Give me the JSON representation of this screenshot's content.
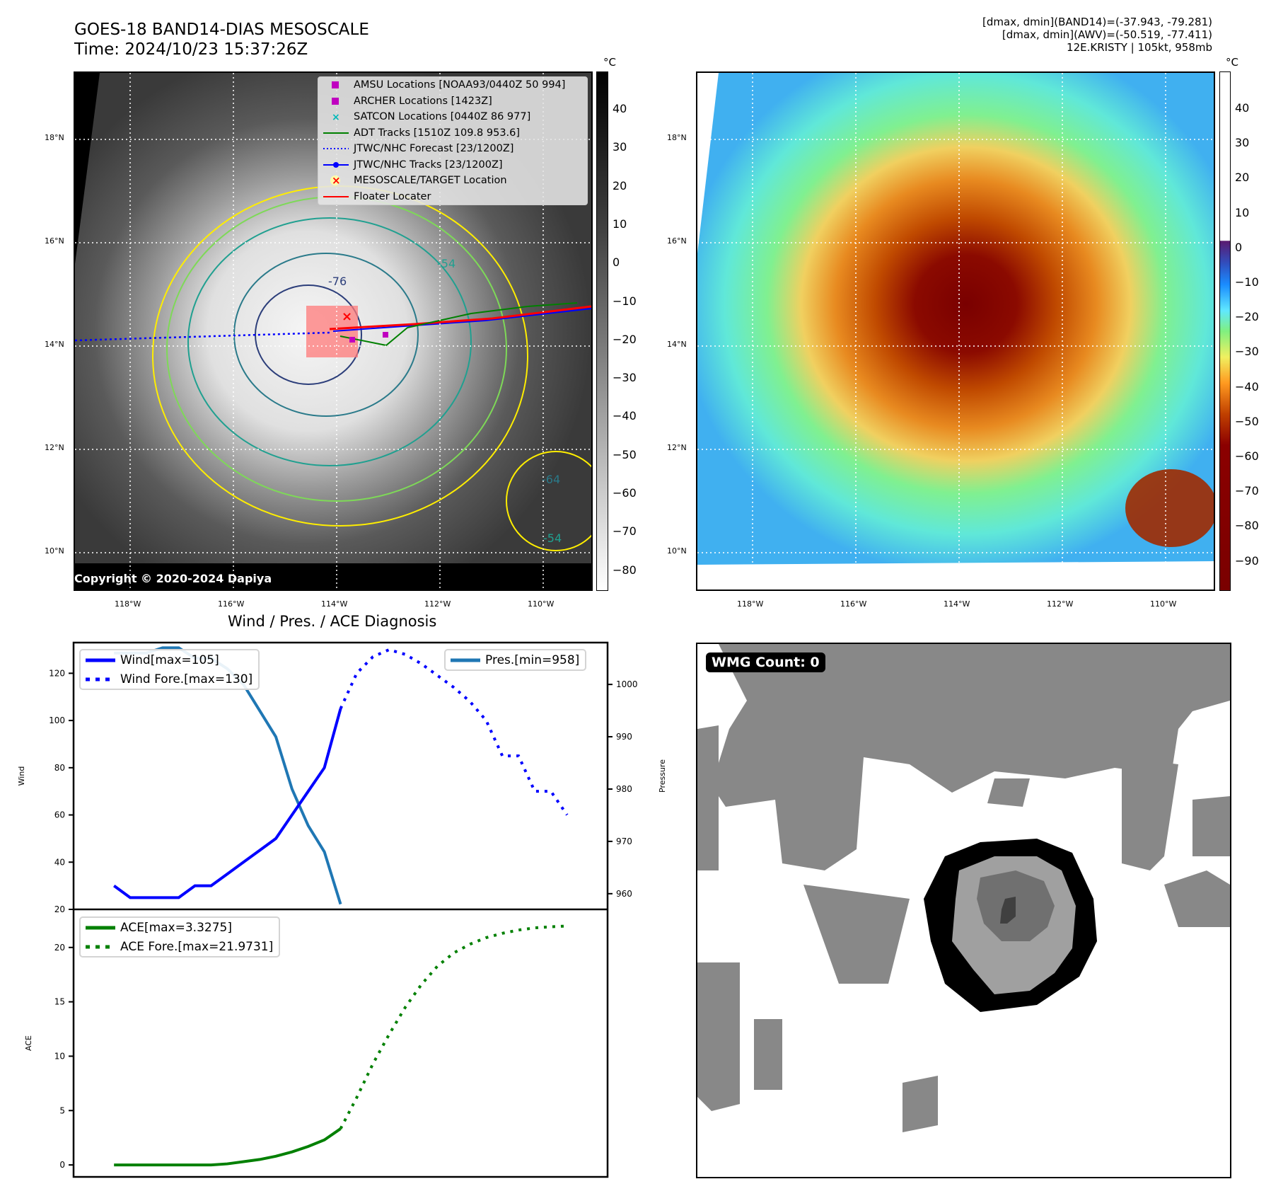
{
  "header": {
    "title_line1": "GOES-18 BAND14-DIAS MESOSCALE",
    "title_line2": "Time: 2024/10/23 15:37:26Z",
    "stats_line1": "[dmax, dmin](BAND14)=(-37.943, -79.281)",
    "stats_line2": "[dmax, dmin](AWV)=(-50.519, -77.411)",
    "stats_line3": "12E.KRISTY | 105kt, 958mb"
  },
  "map_axes": {
    "lat_labels": [
      "18°N",
      "16°N",
      "14°N",
      "12°N",
      "10°N"
    ],
    "lon_labels": [
      "118°W",
      "116°W",
      "114°W",
      "112°W",
      "110°W"
    ]
  },
  "ir_panel": {
    "legend": [
      {
        "label": "AMSU Locations [NOAA93/0440Z 50 994]",
        "symbol": "square",
        "color": "#c000c0"
      },
      {
        "label": "ARCHER Locations [1423Z]",
        "symbol": "square",
        "color": "#c000c0"
      },
      {
        "label": "SATCON Locations [0440Z 86 977]",
        "symbol": "x",
        "color": "#00b8b8"
      },
      {
        "label": "ADT Tracks [1510Z 109.8 953.6]",
        "symbol": "line",
        "color": "#008000"
      },
      {
        "label": "JTWC/NHC Forecast [23/1200Z]",
        "symbol": "dotted",
        "color": "#0000ff"
      },
      {
        "label": "JTWC/NHC Tracks [23/1200Z]",
        "symbol": "line-dot",
        "color": "#0000ff"
      },
      {
        "label": "MESOSCALE/TARGET Location",
        "symbol": "x-red",
        "color": "#ff0000"
      },
      {
        "label": "Floater Locater",
        "symbol": "line",
        "color": "#ff0000"
      }
    ],
    "contour_labels": [
      "-76",
      "-64",
      "-54",
      "-64",
      "-54"
    ],
    "copyright": "Copyright © 2020-2024 Dapiya",
    "colorbar": {
      "unit": "°C",
      "ticks": [
        "40",
        "30",
        "20",
        "10",
        "0",
        "−10",
        "−20",
        "−30",
        "−40",
        "−50",
        "−60",
        "−70",
        "−80"
      ]
    }
  },
  "awv_panel": {
    "colorbar": {
      "unit": "°C",
      "ticks": [
        "40",
        "30",
        "20",
        "10",
        "0",
        "−10",
        "−20",
        "−30",
        "−40",
        "−50",
        "−60",
        "−70",
        "−80",
        "−90"
      ]
    }
  },
  "wmg_panel": {
    "badge": "WMG Count: 0"
  },
  "chart_data": [
    {
      "type": "line",
      "title": "Wind / Pres. / ACE Diagnosis",
      "ylabel": "Wind",
      "ylabel_right": "Pressure",
      "ylim": [
        20,
        133
      ],
      "ylim_right": [
        957,
        1008
      ],
      "yticks": [
        20,
        40,
        60,
        80,
        100,
        120
      ],
      "yticks_right": [
        960,
        970,
        980,
        990,
        1000
      ],
      "legend_left": [
        "Wind[max=105]",
        "Wind Fore.[max=130]"
      ],
      "legend_right": [
        "Pres.[min=958]"
      ],
      "x": [
        0,
        1,
        2,
        3,
        4,
        5,
        6,
        7,
        8,
        9,
        10,
        11,
        12,
        13,
        14,
        15,
        16,
        17,
        18,
        19,
        20,
        21,
        22,
        23,
        24,
        25,
        26,
        27,
        28,
        29,
        30,
        31,
        32,
        33,
        34,
        35,
        36,
        37,
        38,
        39,
        40,
        41,
        42,
        43,
        44,
        45,
        46,
        47,
        48,
        49,
        50,
        51,
        52,
        53,
        54,
        55,
        56,
        57,
        58,
        59,
        60,
        61,
        62,
        63,
        64,
        65,
        66,
        67,
        68,
        69,
        70
      ],
      "series": [
        {
          "name": "Wind",
          "color": "#0000ff",
          "style": "solid",
          "x": [
            0,
            1,
            2,
            3,
            4,
            5,
            6,
            7,
            8,
            9,
            10,
            11,
            12,
            13,
            14
          ],
          "values": [
            30,
            25,
            25,
            25,
            25,
            30,
            30,
            35,
            40,
            45,
            50,
            60,
            70,
            80,
            105
          ]
        },
        {
          "name": "Wind Fore.",
          "color": "#0000ff",
          "style": "dotted",
          "x": [
            14,
            15,
            16,
            17,
            18,
            19,
            20,
            21,
            22,
            23,
            24,
            25,
            26,
            27,
            28
          ],
          "values": [
            105,
            120,
            127,
            130,
            128,
            124,
            119,
            114,
            108,
            100,
            85,
            85,
            70,
            70,
            60
          ]
        },
        {
          "name": "Pres.",
          "color": "#1f77b4",
          "style": "solid",
          "axis": "right",
          "x": [
            0,
            1,
            2,
            3,
            4,
            5,
            6,
            7,
            8,
            9,
            10,
            11,
            12,
            13,
            14
          ],
          "values": [
            1006,
            1006,
            1006,
            1007,
            1007,
            1005,
            1005,
            1003,
            1000,
            995,
            990,
            980,
            973,
            968,
            958
          ]
        }
      ]
    },
    {
      "type": "line",
      "ylabel": "ACE",
      "ylim": [
        -1.1,
        23.5
      ],
      "yticks": [
        0,
        5,
        10,
        15,
        20
      ],
      "legend": [
        "ACE[max=3.3275]",
        "ACE Fore.[max=21.9731]"
      ],
      "series": [
        {
          "name": "ACE",
          "color": "#008000",
          "style": "solid",
          "x": [
            0,
            1,
            2,
            3,
            4,
            5,
            6,
            7,
            8,
            9,
            10,
            11,
            12,
            13,
            14
          ],
          "values": [
            0,
            0,
            0,
            0,
            0,
            0,
            0,
            0.1,
            0.3,
            0.5,
            0.8,
            1.2,
            1.7,
            2.3,
            3.33
          ]
        },
        {
          "name": "ACE Fore.",
          "color": "#008000",
          "style": "dotted",
          "x": [
            14,
            15,
            16,
            17,
            18,
            19,
            20,
            21,
            22,
            23,
            24,
            25,
            26,
            27,
            28
          ],
          "values": [
            3.33,
            6.2,
            9.3,
            12.0,
            14.5,
            16.6,
            18.3,
            19.5,
            20.3,
            20.9,
            21.3,
            21.6,
            21.8,
            21.9,
            21.97
          ]
        }
      ]
    }
  ]
}
